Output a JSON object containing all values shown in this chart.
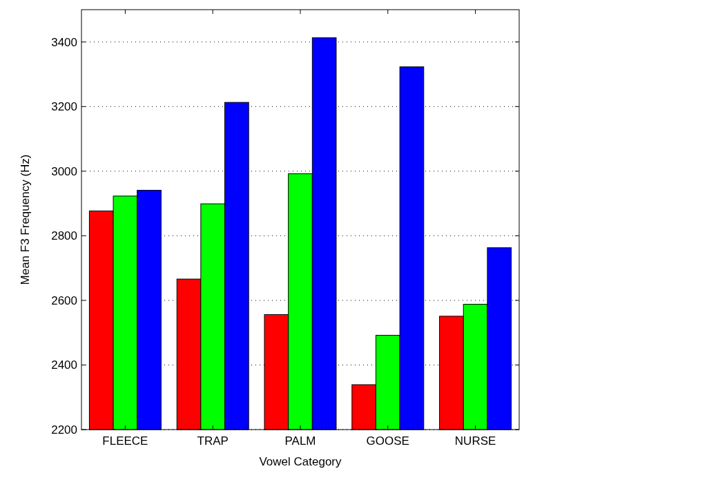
{
  "chart_data": {
    "type": "bar",
    "xlabel": "Vowel Category",
    "ylabel": "Mean F3 Frequency (Hz)",
    "categories": [
      "FLEECE",
      "TRAP",
      "PALM",
      "GOOSE",
      "NURSE"
    ],
    "series": [
      {
        "color": "#ff0000",
        "values": [
          2877,
          2666,
          2556,
          2339,
          2551
        ]
      },
      {
        "color": "#00ff00",
        "values": [
          2923,
          2899,
          2992,
          2492,
          2588
        ]
      },
      {
        "color": "#0000ff",
        "values": [
          2941,
          3213,
          3413,
          3323,
          2763
        ]
      }
    ],
    "ylim": [
      2200,
      3500
    ],
    "yticks": [
      2200,
      2400,
      2600,
      2800,
      3000,
      3200,
      3400
    ],
    "grid": "y"
  }
}
